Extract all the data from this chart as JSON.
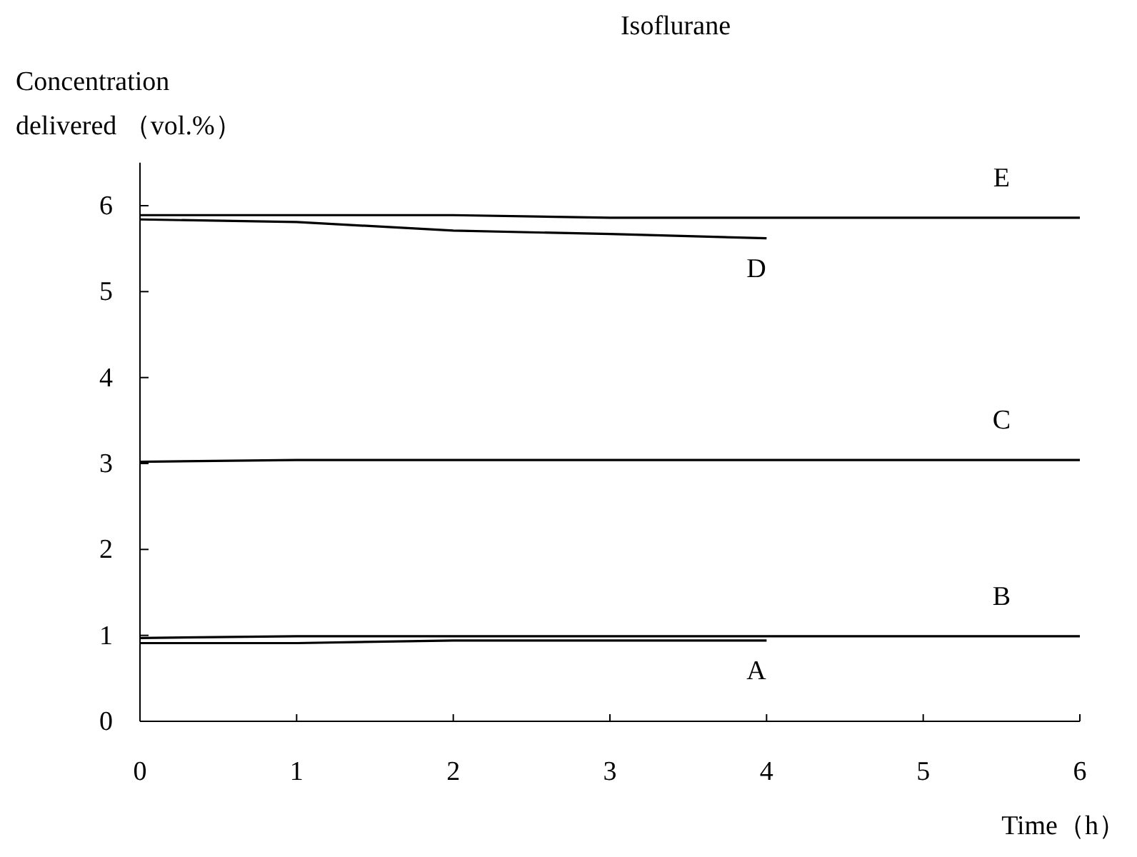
{
  "chart_data": {
    "type": "line",
    "title": "Isoflurane",
    "xlabel": "Time（h）",
    "ylabel": "Concentration delivered （vol.%）",
    "xlim": [
      0,
      6
    ],
    "xticks": [
      0,
      1,
      2,
      3,
      4,
      5,
      6
    ],
    "ylim": [
      0,
      6.5
    ],
    "yticks": [
      0,
      1,
      2,
      3,
      4,
      5,
      6
    ],
    "grid": false,
    "marker": "none",
    "line_style": "solid",
    "series": [
      {
        "name": "E",
        "color": "#000000",
        "x": [
          0,
          1,
          2,
          3,
          4,
          5,
          6
        ],
        "values": [
          5.89,
          5.89,
          5.89,
          5.86,
          5.86,
          5.86,
          5.86
        ]
      },
      {
        "name": "D",
        "color": "#000000",
        "x": [
          0,
          1,
          2,
          3,
          4
        ],
        "values": [
          5.84,
          5.81,
          5.71,
          5.67,
          5.62
        ]
      },
      {
        "name": "C",
        "color": "#000000",
        "x": [
          0,
          1,
          2,
          3,
          4,
          5,
          6
        ],
        "values": [
          3.02,
          3.04,
          3.04,
          3.04,
          3.04,
          3.04,
          3.04
        ]
      },
      {
        "name": "B",
        "color": "#000000",
        "x": [
          0,
          1,
          2,
          3,
          4,
          5,
          6
        ],
        "values": [
          0.97,
          0.99,
          0.99,
          0.99,
          0.99,
          0.99,
          0.99
        ]
      },
      {
        "name": "A",
        "color": "#000000",
        "x": [
          0,
          1,
          2,
          3,
          4
        ],
        "values": [
          0.91,
          0.91,
          0.94,
          0.94,
          0.94
        ]
      }
    ]
  }
}
